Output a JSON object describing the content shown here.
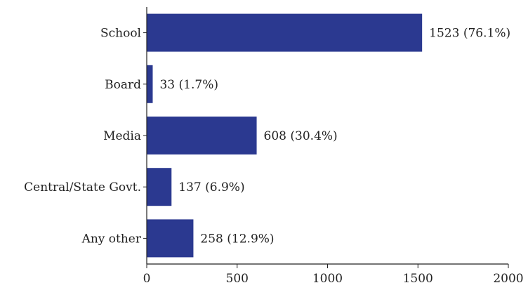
{
  "chart_data": {
    "type": "bar",
    "orientation": "horizontal",
    "categories": [
      "School",
      "Board",
      "Media",
      "Central/State Govt.",
      "Any other"
    ],
    "values": [
      1523,
      33,
      608,
      137,
      258
    ],
    "data_labels": [
      "1523 (76.1%)",
      "33 (1.7%)",
      "608 (30.4%)",
      "137 (6.9%)",
      "258 (12.9%)"
    ],
    "xlim": [
      0,
      2000
    ],
    "x_ticks": [
      0,
      500,
      1000,
      1500,
      2000
    ],
    "x_tick_labels": [
      "0",
      "500",
      "1000",
      "1500",
      "2000"
    ],
    "title": "",
    "xlabel": "",
    "ylabel": "",
    "grid": false,
    "legend": "none",
    "bar_color": "#2b3990",
    "axis_color": "#222222"
  }
}
